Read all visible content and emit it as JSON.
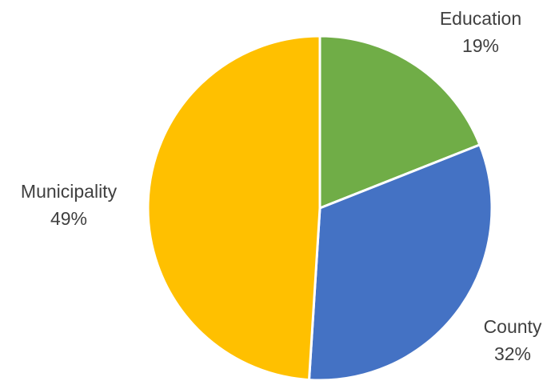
{
  "chart_data": {
    "type": "pie",
    "title": "",
    "slices": [
      {
        "label": "Education",
        "value": 19,
        "value_label": "19%",
        "color": "#70AD47"
      },
      {
        "label": "County",
        "value": 32,
        "value_label": "32%",
        "color": "#4472C4"
      },
      {
        "label": "Municipality",
        "value": 49,
        "value_label": "49%",
        "color": "#FFC000"
      }
    ],
    "start_angle_deg": 0,
    "direction": "clockwise",
    "legend": "none",
    "data_labels": "outside"
  }
}
